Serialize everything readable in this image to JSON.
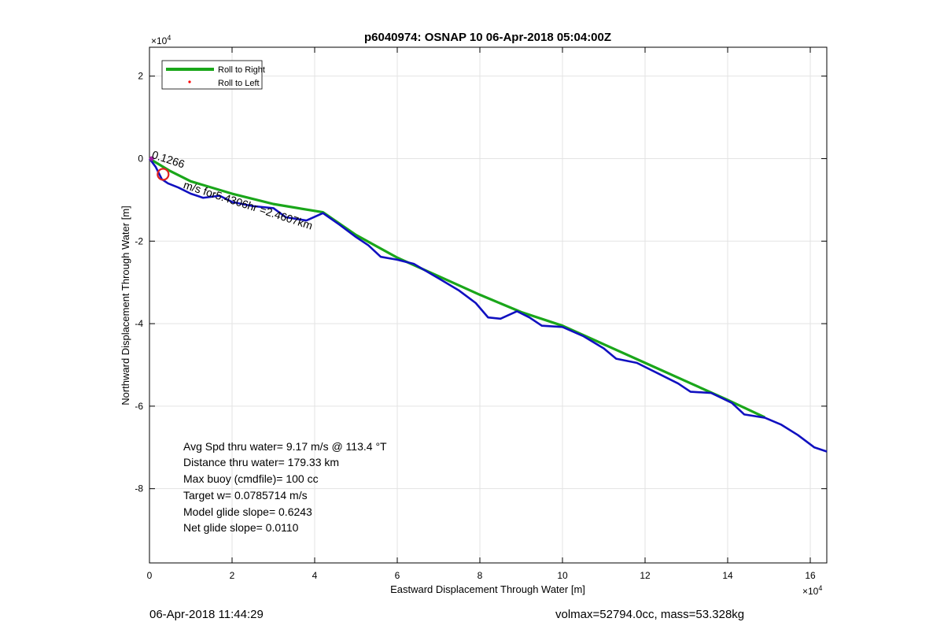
{
  "chart_data": {
    "type": "line",
    "title": "p6040974: OSNAP 10 06-Apr-2018 05:04:00Z",
    "xlabel": "Eastward Displacement Through Water [m]",
    "ylabel": "Northward Displacement Through Water [m]",
    "x_exponent_label": "×10",
    "x_exponent_power": "4",
    "y_exponent_label": "×10",
    "y_exponent_power": "4",
    "xlim": [
      0,
      16.4
    ],
    "ylim": [
      -9.8,
      2.7
    ],
    "x_scale_note_units": "x10^4 m",
    "xticks": [
      0,
      2,
      4,
      6,
      8,
      10,
      12,
      14,
      16
    ],
    "xtick_labels": [
      "0",
      "2",
      "4",
      "6",
      "8",
      "10",
      "12",
      "14",
      "16"
    ],
    "yticks": [
      2,
      0,
      -2,
      -4,
      -6,
      -8
    ],
    "ytick_labels": [
      "2",
      "0",
      "-2",
      "-4",
      "-6",
      "-8"
    ],
    "grid": true,
    "legend_position": "top-left",
    "series": [
      {
        "name": "Roll to Right",
        "color": "#1aa61a",
        "style": "line",
        "x": [
          0.0,
          0.5,
          1.0,
          2.0,
          3.0,
          4.2,
          5.0,
          6.0,
          7.0,
          8.0,
          9.0,
          10.0,
          11.0,
          12.0,
          13.0,
          14.0,
          14.9
        ],
        "y": [
          0.0,
          -0.3,
          -0.55,
          -0.85,
          -1.1,
          -1.3,
          -1.85,
          -2.4,
          -2.85,
          -3.3,
          -3.72,
          -4.05,
          -4.5,
          -4.95,
          -5.4,
          -5.85,
          -6.27
        ]
      },
      {
        "name": "Roll to Left",
        "color": "#ff0000",
        "style": "dot",
        "x": [],
        "y": []
      },
      {
        "name": "",
        "color": "#1010c0",
        "style": "line",
        "x": [
          0.0,
          0.15,
          0.3,
          0.45,
          0.7,
          1.0,
          1.3,
          1.7,
          2.0,
          2.5,
          3.0,
          3.3,
          3.8,
          4.2,
          4.6,
          5.0,
          5.3,
          5.6,
          6.0,
          6.4,
          7.0,
          7.5,
          7.9,
          8.2,
          8.5,
          8.9,
          9.2,
          9.5,
          10.0,
          10.5,
          11.0,
          11.3,
          11.8,
          12.3,
          12.8,
          13.1,
          13.6,
          14.1,
          14.4,
          14.9,
          15.3,
          15.7,
          16.1,
          16.4
        ],
        "y": [
          0.0,
          -0.2,
          -0.5,
          -0.6,
          -0.7,
          -0.85,
          -0.95,
          -0.9,
          -1.05,
          -1.15,
          -1.2,
          -1.42,
          -1.5,
          -1.32,
          -1.6,
          -1.9,
          -2.1,
          -2.38,
          -2.45,
          -2.55,
          -2.9,
          -3.2,
          -3.5,
          -3.85,
          -3.88,
          -3.7,
          -3.85,
          -4.05,
          -4.08,
          -4.3,
          -4.6,
          -4.85,
          -4.95,
          -5.2,
          -5.45,
          -5.65,
          -5.68,
          -5.92,
          -6.2,
          -6.28,
          -6.45,
          -6.7,
          -7.0,
          -7.1
        ]
      }
    ],
    "annotations": {
      "marker_circle": {
        "x": 0.33,
        "y": -0.38,
        "color": "#e02020"
      },
      "segment_label": "m/s for5.4306hr =2.4607km",
      "overlap_label": "0.1266"
    },
    "stats": [
      "Avg Spd thru water=  9.17 m/s @ 113.4 °T",
      "Distance thru water= 179.33 km",
      "Max buoy (cmdfile)= 100 cc",
      "Target w= 0.0785714 m/s",
      "Model glide slope= 0.6243",
      "Net glide slope= 0.0110"
    ]
  },
  "footer": {
    "timestamp": "06-Apr-2018 11:44:29",
    "vol_mass": "volmax=52794.0cc, mass=53.328kg"
  }
}
